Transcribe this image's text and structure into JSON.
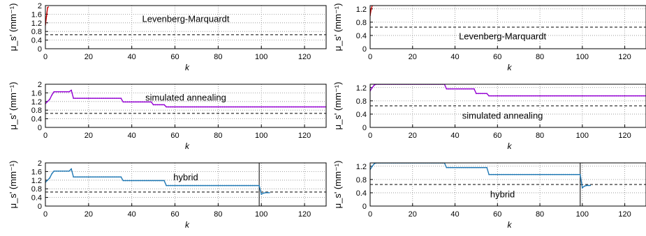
{
  "chart_data": [
    {
      "type": "line",
      "panel": "left-top",
      "xlabel": "k",
      "ylabel": "μ_s' (mm⁻¹)",
      "xlim": [
        0,
        130
      ],
      "ylim": [
        0,
        2
      ],
      "xticks": [
        "0",
        "20",
        "40",
        "60",
        "80",
        "100",
        "120"
      ],
      "yticks": [
        "0",
        "0.4",
        "0.8",
        "1.2",
        "1.6",
        "2"
      ],
      "ytick_values": [
        0,
        0.4,
        0.8,
        1.2,
        1.6,
        2
      ],
      "annotation": "Levenberg-Marquardt",
      "reference_line": 0.65,
      "series": [
        {
          "color": "#cc0000",
          "x": [
            0,
            0.5,
            1,
            1.5
          ],
          "y": [
            1.1,
            1.5,
            1.9,
            1.95
          ]
        }
      ]
    },
    {
      "type": "line",
      "panel": "right-top",
      "xlabel": "k",
      "ylabel": "μ_s' (mm⁻¹)",
      "xlim": [
        0,
        130
      ],
      "ylim": [
        0,
        1.3
      ],
      "xticks": [
        "0",
        "20",
        "40",
        "60",
        "80",
        "100",
        "120"
      ],
      "yticks": [
        "0",
        "0.4",
        "0.8",
        "1.2"
      ],
      "ytick_values": [
        0,
        0.4,
        0.8,
        1.2
      ],
      "annotation": "Levenberg-Marquardt",
      "reference_line": 0.65,
      "series": [
        {
          "color": "#cc0000",
          "x": [
            0,
            0.5,
            1
          ],
          "y": [
            1.0,
            1.2,
            1.3
          ]
        }
      ]
    },
    {
      "type": "line",
      "panel": "left-middle",
      "xlabel": "k",
      "ylabel": "μ_s' (mm⁻¹)",
      "xlim": [
        0,
        130
      ],
      "ylim": [
        0,
        2
      ],
      "xticks": [
        "0",
        "20",
        "40",
        "60",
        "80",
        "100",
        "120"
      ],
      "yticks": [
        "0",
        "0.4",
        "0.8",
        "1.2",
        "1.6",
        "2"
      ],
      "ytick_values": [
        0,
        0.4,
        0.8,
        1.2,
        1.6,
        2
      ],
      "annotation": "simulated annealing",
      "reference_line": 0.65,
      "series": [
        {
          "color": "#9400d3",
          "x": [
            0,
            1,
            2,
            3,
            4,
            11,
            12,
            13,
            14,
            35,
            36,
            49,
            50,
            55,
            56,
            130
          ],
          "y": [
            1.1,
            1.2,
            1.3,
            1.5,
            1.65,
            1.65,
            1.72,
            1.35,
            1.35,
            1.35,
            1.18,
            1.18,
            1.05,
            1.05,
            0.95,
            0.95
          ]
        }
      ]
    },
    {
      "type": "line",
      "panel": "right-middle",
      "xlabel": "k",
      "ylabel": "μ_s' (mm⁻¹)",
      "xlim": [
        0,
        130
      ],
      "ylim": [
        0,
        1.3
      ],
      "xticks": [
        "0",
        "20",
        "40",
        "60",
        "80",
        "100",
        "120"
      ],
      "yticks": [
        "0",
        "0.4",
        "0.8",
        "1.2"
      ],
      "ytick_values": [
        0,
        0.4,
        0.8,
        1.2
      ],
      "annotation": "simulated annealing",
      "reference_line": 0.65,
      "series": [
        {
          "color": "#9400d3",
          "x": [
            0,
            1,
            2,
            3,
            35,
            36,
            49,
            50,
            55,
            56,
            130
          ],
          "y": [
            1.1,
            1.2,
            1.28,
            1.3,
            1.3,
            1.16,
            1.16,
            1.02,
            1.02,
            0.95,
            0.95
          ]
        }
      ]
    },
    {
      "type": "line",
      "panel": "left-bottom",
      "xlabel": "k",
      "ylabel": "μ_s' (mm⁻¹)",
      "xlim": [
        0,
        130
      ],
      "ylim": [
        0,
        2
      ],
      "xticks": [
        "0",
        "20",
        "40",
        "60",
        "80",
        "100",
        "120"
      ],
      "yticks": [
        "0",
        "0.4",
        "0.8",
        "1.2",
        "1.6",
        "2"
      ],
      "ytick_values": [
        0,
        0.4,
        0.8,
        1.2,
        1.6,
        2
      ],
      "annotation": "hybrid",
      "reference_line": 0.65,
      "switch_k": 99,
      "series": [
        {
          "color": "#1f78b4",
          "x": [
            0,
            1,
            2,
            3,
            4,
            11,
            12,
            13,
            14,
            35,
            36,
            55,
            56,
            99,
            100,
            101,
            102,
            104
          ],
          "y": [
            1.1,
            1.2,
            1.3,
            1.5,
            1.62,
            1.62,
            1.72,
            1.35,
            1.35,
            1.35,
            1.18,
            1.18,
            0.95,
            0.95,
            0.55,
            0.6,
            0.62,
            0.62
          ]
        }
      ]
    },
    {
      "type": "line",
      "panel": "right-bottom",
      "xlabel": "k",
      "ylabel": "μ_s' (mm⁻¹)",
      "xlim": [
        0,
        130
      ],
      "ylim": [
        0,
        1.3
      ],
      "xticks": [
        "0",
        "20",
        "40",
        "60",
        "80",
        "100",
        "120"
      ],
      "yticks": [
        "0",
        "0.4",
        "0.8",
        "1.2"
      ],
      "ytick_values": [
        0,
        0.4,
        0.8,
        1.2
      ],
      "annotation": "hybrid",
      "reference_line": 0.65,
      "switch_k": 99,
      "series": [
        {
          "color": "#1f78b4",
          "x": [
            0,
            1,
            2,
            3,
            35,
            36,
            55,
            56,
            99,
            100,
            101,
            102,
            104
          ],
          "y": [
            1.1,
            1.2,
            1.28,
            1.3,
            1.3,
            1.16,
            1.16,
            0.95,
            0.95,
            0.55,
            0.6,
            0.62,
            0.62
          ]
        }
      ]
    }
  ]
}
